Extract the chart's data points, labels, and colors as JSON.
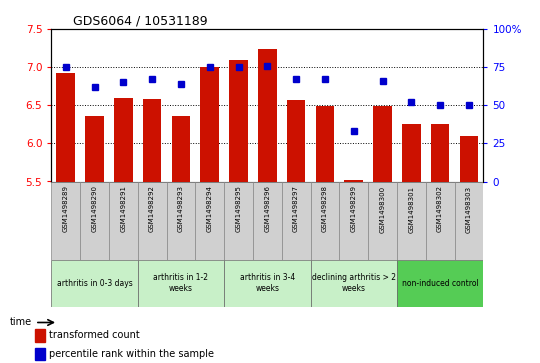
{
  "title": "GDS6064 / 10531189",
  "samples": [
    "GSM1498289",
    "GSM1498290",
    "GSM1498291",
    "GSM1498292",
    "GSM1498293",
    "GSM1498294",
    "GSM1498295",
    "GSM1498296",
    "GSM1498297",
    "GSM1498298",
    "GSM1498299",
    "GSM1498300",
    "GSM1498301",
    "GSM1498302",
    "GSM1498303"
  ],
  "red_values": [
    6.92,
    6.36,
    6.6,
    6.58,
    6.36,
    7.0,
    7.1,
    7.24,
    6.57,
    6.49,
    5.52,
    6.49,
    6.26,
    6.26,
    6.1
  ],
  "blue_values": [
    75,
    62,
    65,
    67,
    64,
    75,
    75,
    76,
    67,
    67,
    33,
    66,
    52,
    50,
    50
  ],
  "groups": [
    {
      "label": "arthritis in 0-3 days",
      "start": 0,
      "end": 3,
      "color": "#c8f0c8"
    },
    {
      "label": "arthritis in 1-2\nweeks",
      "start": 3,
      "end": 6,
      "color": "#c8f0c8"
    },
    {
      "label": "arthritis in 3-4\nweeks",
      "start": 6,
      "end": 9,
      "color": "#c8f0c8"
    },
    {
      "label": "declining arthritis > 2\nweeks",
      "start": 9,
      "end": 12,
      "color": "#c8f0c8"
    },
    {
      "label": "non-induced control",
      "start": 12,
      "end": 15,
      "color": "#55cc55"
    }
  ],
  "ylim_left": [
    5.5,
    7.5
  ],
  "ylim_right": [
    0,
    100
  ],
  "yticks_left": [
    5.5,
    6.0,
    6.5,
    7.0,
    7.5
  ],
  "yticks_right": [
    0,
    25,
    50,
    75,
    100
  ],
  "bar_color": "#cc1100",
  "dot_color": "#0000cc",
  "cell_color": "#d0d0d0",
  "background_color": "#ffffff"
}
